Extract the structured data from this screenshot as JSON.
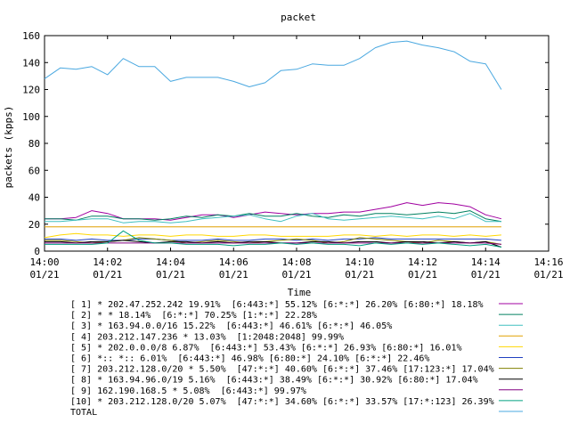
{
  "chart_data": {
    "type": "line",
    "title": "packet",
    "xlabel": "Time",
    "ylabel": "packets (kpps)",
    "xlim": [
      "14:00",
      "14:16"
    ],
    "ylim": [
      0,
      160
    ],
    "x_ticks": [
      {
        "time": "14:00",
        "date": "01/21"
      },
      {
        "time": "14:02",
        "date": "01/21"
      },
      {
        "time": "14:04",
        "date": "01/21"
      },
      {
        "time": "14:06",
        "date": "01/21"
      },
      {
        "time": "14:08",
        "date": "01/21"
      },
      {
        "time": "14:10",
        "date": "01/21"
      },
      {
        "time": "14:12",
        "date": "01/21"
      },
      {
        "time": "14:14",
        "date": "01/21"
      },
      {
        "time": "14:16",
        "date": "01/21"
      }
    ],
    "y_ticks": [
      "0",
      "20",
      "40",
      "60",
      "80",
      "100",
      "120",
      "140",
      "160"
    ],
    "grid": false,
    "legend_position": "bottom",
    "x": [
      "14:00",
      "14:00:30",
      "14:01",
      "14:01:30",
      "14:02",
      "14:02:30",
      "14:03",
      "14:03:30",
      "14:04",
      "14:04:30",
      "14:05",
      "14:05:30",
      "14:06",
      "14:06:30",
      "14:07",
      "14:07:30",
      "14:08",
      "14:08:30",
      "14:09",
      "14:09:30",
      "14:10",
      "14:10:30",
      "14:11",
      "14:11:30",
      "14:12",
      "14:12:30",
      "14:13",
      "14:13:30",
      "14:14",
      "14:14:30"
    ],
    "series": [
      {
        "name": "[ 1] * 202.47.252.242 19.91%  [6:443:*] 55.12% [6:*:*] 26.20% [6:80:*] 18.18%",
        "color": "#a000a0",
        "values": [
          24,
          24,
          25,
          30,
          28,
          24,
          24,
          24,
          23,
          25,
          27,
          27,
          25,
          27,
          29,
          28,
          27,
          28,
          28,
          29,
          29,
          31,
          33,
          36,
          34,
          36,
          35,
          33,
          27,
          24
        ]
      },
      {
        "name": "[ 2] * * 18.14%  [6:*:*] 70.25% [1:*:*] 22.28%",
        "color": "#008060",
        "values": [
          24,
          24,
          23,
          26,
          26,
          24,
          24,
          23,
          24,
          26,
          25,
          27,
          26,
          28,
          26,
          26,
          28,
          26,
          25,
          27,
          26,
          28,
          28,
          27,
          28,
          29,
          28,
          30,
          24,
          22
        ]
      },
      {
        "name": "[ 3] * 163.94.0.0/16 15.22%  [6:443:*] 46.61% [6:*:*] 46.05%",
        "color": "#40c0c0",
        "values": [
          22,
          22,
          23,
          24,
          24,
          21,
          22,
          22,
          21,
          22,
          24,
          25,
          26,
          27,
          24,
          22,
          26,
          28,
          24,
          23,
          24,
          25,
          26,
          25,
          24,
          26,
          24,
          28,
          22,
          22
        ]
      },
      {
        "name": "[ 4] 203.212.147.236 * 13.03%  [1:2048:2048] 99.99%",
        "color": "#e0a000",
        "values": [
          18,
          18,
          18,
          18,
          18,
          18,
          18,
          18,
          18,
          18,
          18,
          18,
          18,
          18,
          18,
          18,
          18,
          18,
          18,
          18,
          18,
          18,
          18,
          18,
          18,
          18,
          18,
          18,
          18,
          18
        ]
      },
      {
        "name": "[ 5] * 202.0.0.0/8 6.87%  [6:443:*] 53.43% [6:*:*] 26.93% [6:80:*] 16.01%",
        "color": "#ffd700",
        "values": [
          10,
          12,
          13,
          12,
          12,
          11,
          12,
          12,
          11,
          12,
          12,
          11,
          11,
          12,
          12,
          11,
          11,
          11,
          11,
          12,
          12,
          11,
          12,
          11,
          12,
          12,
          11,
          12,
          11,
          12
        ]
      },
      {
        "name": "[ 6] *:: *:: 6.01%  [6:443:*] 46.98% [6:80:*] 24.10% [6:*:*] 22.46%",
        "color": "#2040c0",
        "values": [
          9,
          9,
          8,
          9,
          8,
          8,
          9,
          9,
          8,
          8,
          8,
          9,
          8,
          8,
          9,
          9,
          8,
          9,
          8,
          9,
          9,
          10,
          9,
          9,
          9,
          9,
          9,
          9,
          9,
          8
        ]
      },
      {
        "name": "[ 7] 203.212.128.0/20 * 5.50%  [47:*:*] 40.60% [6:*:*] 37.46% [17:123:*] 17.04%",
        "color": "#808000",
        "values": [
          8,
          8,
          7,
          6,
          7,
          8,
          10,
          9,
          8,
          6,
          7,
          8,
          7,
          6,
          7,
          8,
          9,
          8,
          6,
          7,
          10,
          9,
          8,
          7,
          6,
          8,
          7,
          6,
          7,
          5
        ]
      },
      {
        "name": "[ 8] * 163.94.96.0/19 5.16%  [6:443:*] 38.49% [6:*:*] 30.92% [6:80:*] 17.04%",
        "color": "#000000",
        "values": [
          7,
          7,
          6,
          7,
          7,
          8,
          7,
          6,
          7,
          7,
          6,
          7,
          6,
          7,
          7,
          6,
          6,
          7,
          7,
          6,
          7,
          7,
          6,
          7,
          7,
          6,
          7,
          6,
          7,
          3
        ]
      },
      {
        "name": "[ 9] 162.190.168.5 * 5.08%  [6:443:*] 99.97%",
        "color": "#800080",
        "values": [
          6,
          6,
          6,
          6,
          6,
          6,
          6,
          6,
          6,
          6,
          6,
          6,
          6,
          6,
          6,
          6,
          6,
          6,
          6,
          6,
          6,
          6,
          6,
          6,
          6,
          6,
          6,
          6,
          6,
          5
        ]
      },
      {
        "name": "[10] * 203.212.128.0/20 5.07%  [47:*:*] 34.60% [6:*:*] 33.57% [17:*:123] 26.39%",
        "color": "#00a080",
        "values": [
          5,
          5,
          5,
          5,
          6,
          15,
          8,
          6,
          6,
          5,
          5,
          5,
          4,
          5,
          5,
          6,
          5,
          6,
          5,
          5,
          4,
          6,
          5,
          6,
          5,
          6,
          5,
          4,
          5,
          3
        ]
      },
      {
        "name": "TOTAL",
        "color": "#4aa8e0",
        "values": [
          128,
          136,
          135,
          137,
          131,
          143,
          137,
          137,
          126,
          129,
          129,
          129,
          126,
          122,
          125,
          134,
          135,
          139,
          138,
          138,
          143,
          151,
          155,
          156,
          153,
          151,
          148,
          141,
          139,
          120
        ]
      }
    ]
  }
}
